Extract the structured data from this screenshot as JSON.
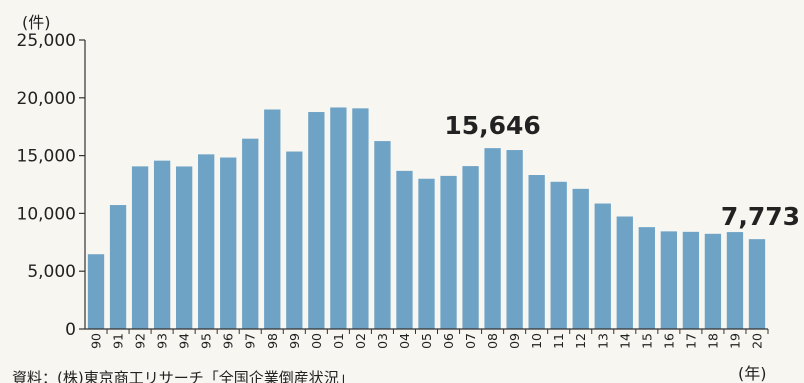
{
  "chart_data": {
    "type": "bar",
    "y_unit": "(件)",
    "x_unit": "(年)",
    "source": "資料：(株)東京商工リサーチ「全国企業倒産状況」",
    "categories": [
      "90",
      "91",
      "92",
      "93",
      "94",
      "95",
      "96",
      "97",
      "98",
      "99",
      "00",
      "01",
      "02",
      "03",
      "04",
      "05",
      "06",
      "07",
      "08",
      "09",
      "10",
      "11",
      "12",
      "13",
      "14",
      "15",
      "16",
      "17",
      "18",
      "19",
      "20"
    ],
    "values": [
      6468,
      10723,
      14069,
      14564,
      14061,
      15108,
      14834,
      16464,
      18988,
      15352,
      18769,
      19164,
      19087,
      16255,
      13679,
      12998,
      13245,
      14091,
      15646,
      15480,
      13321,
      12734,
      12124,
      10855,
      9731,
      8812,
      8446,
      8405,
      8235,
      8383,
      7773
    ],
    "ylim": [
      0,
      25000
    ],
    "yticks": [
      "0",
      "5,000",
      "10,000",
      "15,000",
      "20,000",
      "25,000"
    ],
    "ytick_values": [
      0,
      5000,
      10000,
      15000,
      20000,
      25000
    ],
    "grid": false,
    "bar_color": "#6ea3c6",
    "annotations": [
      {
        "category": "08",
        "text": "15,646"
      },
      {
        "category": "20",
        "text": "7,773"
      }
    ]
  }
}
